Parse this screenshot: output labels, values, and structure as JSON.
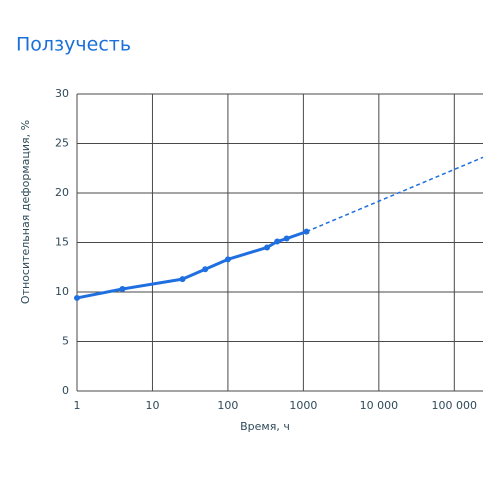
{
  "chart_data": {
    "type": "line",
    "title": "Ползучесть",
    "x_label": "Время, ч",
    "y_label": "Относительная деформация, %",
    "x_scale": "log",
    "grid": true,
    "xlim": [
      1,
      240000
    ],
    "xticks": [
      1,
      10,
      100,
      1000,
      {
        "value": 10000,
        "label": "10 000"
      },
      {
        "value": 100000,
        "label": "100 000"
      }
    ],
    "ylim": [
      0,
      30
    ],
    "yticks": [
      0,
      5,
      10,
      15,
      20,
      25,
      30
    ],
    "series": [
      {
        "color": "#1f6fe0",
        "dashed": false,
        "markers": true,
        "x": [
          1,
          4,
          25,
          50,
          100,
          330,
          450,
          600,
          1100
        ],
        "values": [
          9.4,
          10.3,
          11.3,
          12.3,
          13.3,
          14.5,
          15.1,
          15.4,
          16.1
        ]
      },
      {
        "color": "#1f6fe0",
        "dashed": true,
        "markers": false,
        "x": [
          1100,
          240000
        ],
        "values": [
          16.1,
          23.6
        ]
      }
    ]
  }
}
